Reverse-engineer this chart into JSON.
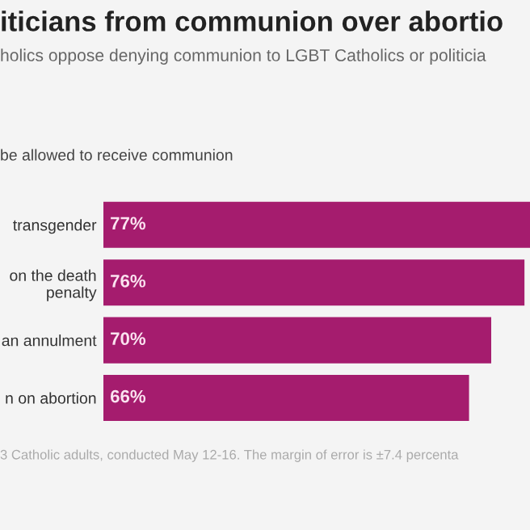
{
  "chart_data": {
    "type": "bar",
    "orientation": "horizontal",
    "title": "iticians from communion over abortio",
    "subtitle": "holics oppose denying communion to LGBT Catholics or politicia",
    "annotations": [
      "be allowed to receive communion",
      "3 Catholic adults, conducted May 12-16. The margin of error is ±7.4 percenta"
    ],
    "categories": [
      "transgender",
      "on the death\npenalty",
      "an annulment",
      "n on abortion"
    ],
    "values": [
      77,
      76,
      70,
      66
    ],
    "value_labels": [
      "77%",
      "76%",
      "70%",
      "66%"
    ],
    "color": "#a51c6e"
  }
}
